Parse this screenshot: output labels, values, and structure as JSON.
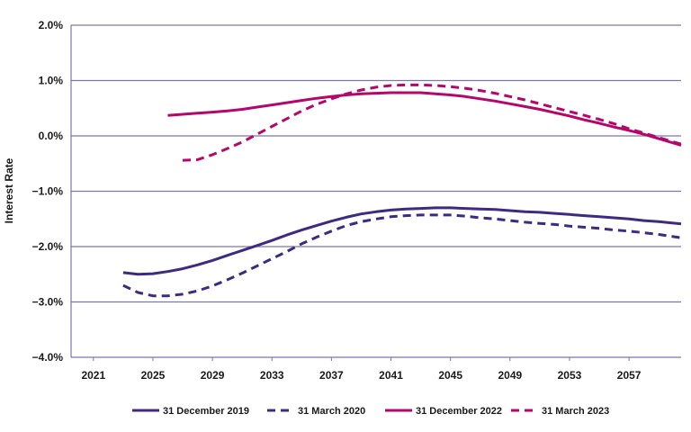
{
  "chart_data": {
    "type": "line",
    "ylabel": "Interest Rate",
    "xlabel": "",
    "title": "",
    "xlim": [
      2019.5,
      2060.5
    ],
    "ylim": [
      -4.0,
      2.0
    ],
    "x_ticks": [
      "2021",
      "2025",
      "2029",
      "2033",
      "2037",
      "2041",
      "2045",
      "2049",
      "2053",
      "2057"
    ],
    "y_ticks": [
      "2.0%",
      "1.0%",
      "0.0%",
      "−1.0%",
      "−2.0%",
      "−3.0%",
      "−4.0%"
    ],
    "grid": true,
    "legend_position": "bottom",
    "series": [
      {
        "name": "31 December 2019",
        "color": "#3d2b82",
        "dash": false,
        "x": [
          2023,
          2024,
          2025,
          2026,
          2027,
          2028,
          2029,
          2030,
          2031,
          2032,
          2033,
          2034,
          2035,
          2036,
          2037,
          2038,
          2039,
          2040,
          2041,
          2042,
          2043,
          2044,
          2045,
          2046,
          2047,
          2048,
          2049,
          2050,
          2051,
          2052,
          2053,
          2054,
          2055,
          2056,
          2057,
          2058,
          2059,
          2060.5
        ],
        "y": [
          -2.47,
          -2.5,
          -2.49,
          -2.45,
          -2.4,
          -2.33,
          -2.25,
          -2.16,
          -2.07,
          -1.98,
          -1.89,
          -1.79,
          -1.7,
          -1.62,
          -1.54,
          -1.47,
          -1.41,
          -1.37,
          -1.34,
          -1.32,
          -1.31,
          -1.3,
          -1.3,
          -1.31,
          -1.32,
          -1.33,
          -1.35,
          -1.37,
          -1.38,
          -1.4,
          -1.42,
          -1.44,
          -1.46,
          -1.48,
          -1.5,
          -1.53,
          -1.55,
          -1.59
        ]
      },
      {
        "name": "31 March 2020",
        "color": "#3d2b82",
        "dash": true,
        "x": [
          2023,
          2024,
          2025,
          2026,
          2027,
          2028,
          2029,
          2030,
          2031,
          2032,
          2033,
          2034,
          2035,
          2036,
          2037,
          2038,
          2039,
          2040,
          2041,
          2042,
          2043,
          2044,
          2045,
          2046,
          2047,
          2048,
          2049,
          2050,
          2051,
          2052,
          2053,
          2054,
          2055,
          2056,
          2057,
          2058,
          2059,
          2060.5
        ],
        "y": [
          -2.7,
          -2.83,
          -2.89,
          -2.89,
          -2.86,
          -2.8,
          -2.71,
          -2.6,
          -2.48,
          -2.35,
          -2.22,
          -2.09,
          -1.95,
          -1.83,
          -1.72,
          -1.62,
          -1.55,
          -1.5,
          -1.46,
          -1.44,
          -1.43,
          -1.43,
          -1.43,
          -1.45,
          -1.48,
          -1.5,
          -1.53,
          -1.56,
          -1.58,
          -1.6,
          -1.63,
          -1.65,
          -1.67,
          -1.7,
          -1.72,
          -1.75,
          -1.78,
          -1.84
        ]
      },
      {
        "name": "31 December 2022",
        "color": "#b5076b",
        "dash": false,
        "x": [
          2026,
          2027,
          2028,
          2029,
          2030,
          2031,
          2032,
          2033,
          2034,
          2035,
          2036,
          2037,
          2038,
          2039,
          2040,
          2041,
          2042,
          2043,
          2044,
          2045,
          2046,
          2047,
          2048,
          2049,
          2050,
          2051,
          2052,
          2053,
          2054,
          2055,
          2056,
          2057,
          2058,
          2059,
          2060.5
        ],
        "y": [
          0.37,
          0.39,
          0.41,
          0.43,
          0.45,
          0.48,
          0.52,
          0.56,
          0.6,
          0.64,
          0.68,
          0.71,
          0.74,
          0.76,
          0.77,
          0.78,
          0.78,
          0.78,
          0.76,
          0.74,
          0.71,
          0.67,
          0.63,
          0.58,
          0.53,
          0.48,
          0.42,
          0.36,
          0.29,
          0.23,
          0.16,
          0.1,
          0.03,
          -0.05,
          -0.17
        ]
      },
      {
        "name": "31 March 2023",
        "color": "#b5076b",
        "dash": true,
        "x": [
          2027,
          2028,
          2029,
          2030,
          2031,
          2032,
          2033,
          2034,
          2035,
          2036,
          2037,
          2038,
          2039,
          2040,
          2041,
          2042,
          2043,
          2044,
          2045,
          2046,
          2047,
          2048,
          2049,
          2050,
          2051,
          2052,
          2053,
          2054,
          2055,
          2056,
          2057,
          2058,
          2059,
          2060.5
        ],
        "y": [
          -0.44,
          -0.43,
          -0.34,
          -0.23,
          -0.11,
          0.03,
          0.17,
          0.31,
          0.45,
          0.57,
          0.67,
          0.76,
          0.83,
          0.88,
          0.91,
          0.92,
          0.92,
          0.91,
          0.89,
          0.86,
          0.82,
          0.77,
          0.71,
          0.65,
          0.58,
          0.51,
          0.44,
          0.37,
          0.3,
          0.22,
          0.13,
          0.05,
          -0.03,
          -0.15
        ]
      }
    ]
  }
}
